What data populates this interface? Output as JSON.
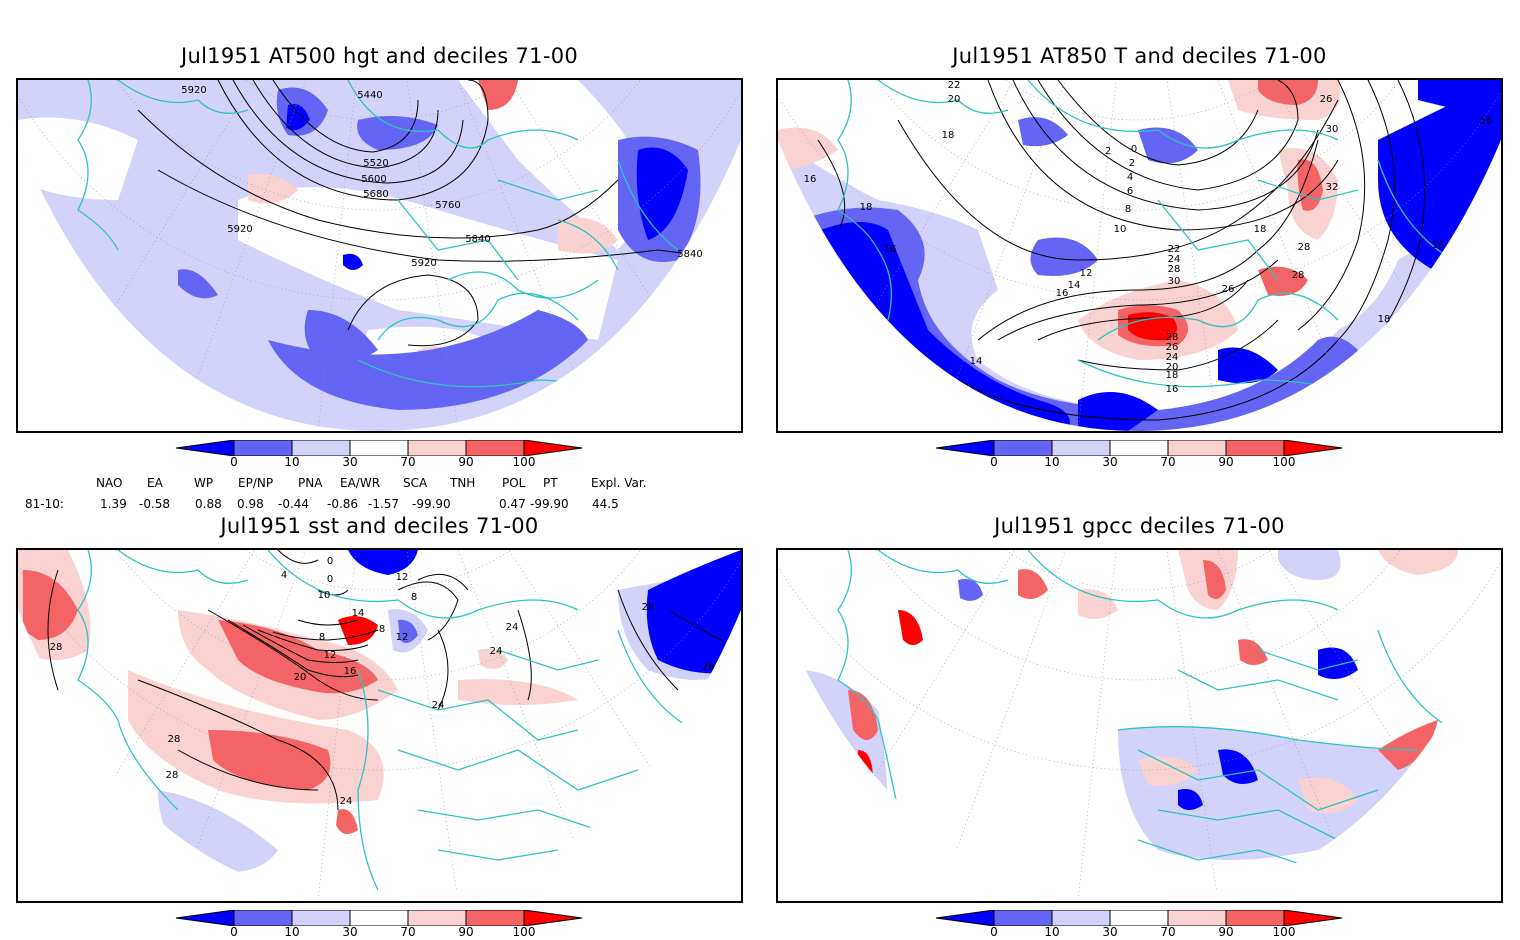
{
  "panels": [
    {
      "title": "Jul1951 AT500 hgt and deciles 71-00",
      "contour_labels": [
        "5920",
        "5440",
        "5520",
        "5600",
        "5680",
        "5760",
        "5840",
        "5840",
        "5920",
        "5920"
      ]
    },
    {
      "title": "Jul1951 AT850 T and deciles 71-00",
      "contour_labels": [
        "22",
        "20",
        "18",
        "16",
        "18",
        "16",
        "16",
        "14",
        "12",
        "10",
        "8",
        "6",
        "4",
        "2",
        "0",
        "2",
        "26",
        "30",
        "32",
        "28",
        "18",
        "16",
        "22",
        "24",
        "28",
        "30",
        "28",
        "26",
        "28",
        "26",
        "24",
        "20",
        "18",
        "16",
        "14",
        "18",
        "16"
      ]
    },
    {
      "title": "Jul1951 sst and deciles 71-00",
      "contour_labels": [
        "28",
        "28",
        "28",
        "24",
        "20",
        "16",
        "12",
        "8",
        "4",
        "0",
        "0",
        "10",
        "12",
        "14",
        "8",
        "8",
        "12",
        "24",
        "24",
        "24",
        "28",
        "28"
      ]
    },
    {
      "title": "Jul1951 gpcc deciles 71-00",
      "contour_labels": []
    }
  ],
  "colorbar": {
    "labels": [
      "0",
      "10",
      "30",
      "70",
      "90",
      "100"
    ],
    "colors": [
      "#0000ff",
      "#6464f5",
      "#d2d2fa",
      "#ffffff",
      "#fad2d2",
      "#f56464",
      "#ff0000"
    ]
  },
  "indices": {
    "headers": [
      "NAO",
      "EA",
      "WP",
      "EP/NP",
      "PNA",
      "EA/WR",
      "SCA",
      "TNH",
      "POL",
      "PT",
      "Expl. Var."
    ],
    "row_label": "81-10:",
    "values": [
      "1.39",
      "-0.58",
      "0.88",
      "0.98",
      "-0.44",
      "-0.86",
      "-1.57",
      "-99.90",
      "0.47",
      "-99.90",
      "44.5"
    ]
  },
  "colors": {
    "coastline": "#2ec4c0",
    "contour": "#000000",
    "grid": "#909090"
  }
}
